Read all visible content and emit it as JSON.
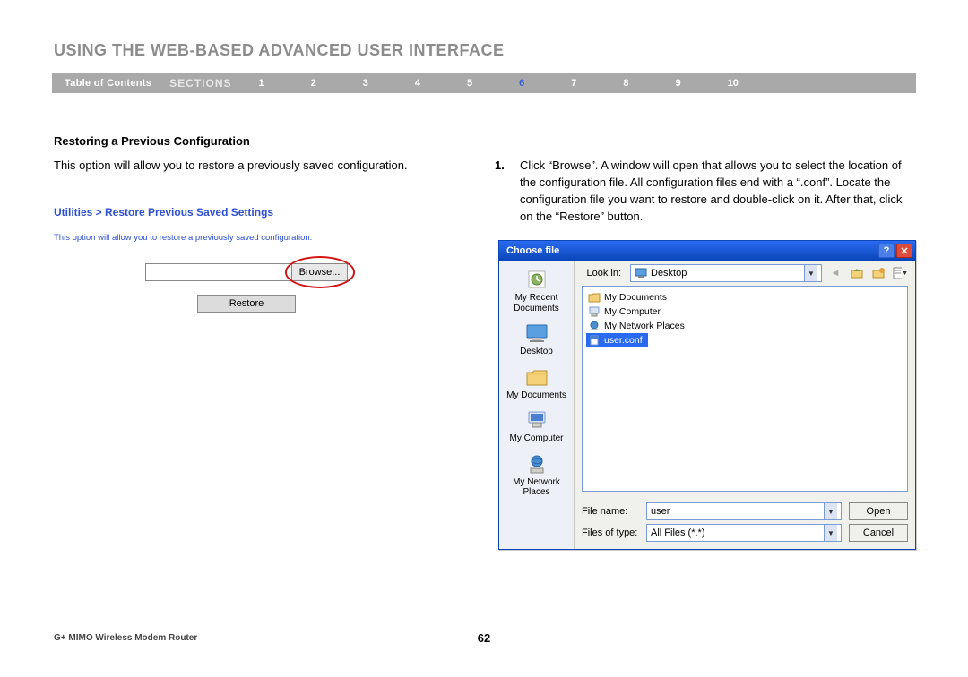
{
  "page": {
    "title": "USING THE WEB-BASED ADVANCED USER INTERFACE",
    "section_heading": "Restoring a Previous Configuration",
    "intro": "This option will allow you to restore a previously saved configuration.",
    "page_number": "62",
    "product": "G+ MIMO Wireless Modem Router"
  },
  "nav": {
    "toc": "Table of Contents",
    "sections_label": "SECTIONS",
    "numbers": [
      "1",
      "2",
      "3",
      "4",
      "5",
      "6",
      "7",
      "8",
      "9",
      "10"
    ],
    "active_index": 5
  },
  "step": {
    "marker": "1.",
    "text": "Click “Browse”. A window will open that allows you to select the location of the configuration file. All configuration files end with a “.conf”. Locate the configuration file you want to restore and double-click on it. After that, click on the “Restore” button."
  },
  "util_box": {
    "breadcrumb": "Utilities > Restore Previous Saved Settings",
    "hint": "This option will allow you to restore a previously saved configuration.",
    "browse_label": "Browse...",
    "restore_label": "Restore"
  },
  "dialog": {
    "title": "Choose file",
    "lookin_label": "Look in:",
    "lookin_value": "Desktop",
    "places": [
      "My Recent Documents",
      "Desktop",
      "My Documents",
      "My Computer",
      "My Network Places"
    ],
    "files": [
      {
        "name": "My Documents",
        "icon": "folder",
        "selected": false
      },
      {
        "name": "My Computer",
        "icon": "computer",
        "selected": false
      },
      {
        "name": "My Network Places",
        "icon": "network",
        "selected": false
      },
      {
        "name": "user.conf",
        "icon": "file",
        "selected": true
      }
    ],
    "filename_label": "File name:",
    "filename_value": "user",
    "filetype_label": "Files of type:",
    "filetype_value": "All Files (*.*)",
    "open_label": "Open",
    "cancel_label": "Cancel"
  },
  "colors": {
    "title_gray": "#8c8c8c",
    "nav_gray": "#a9a9a9",
    "nav_active": "#3b5fd6",
    "xp_blue_top": "#2a6af0",
    "xp_blue_bottom": "#0a46b8",
    "xp_close_red": "#e04a3a",
    "circle_red": "#d11313",
    "link_blue": "#2d4fd1"
  }
}
